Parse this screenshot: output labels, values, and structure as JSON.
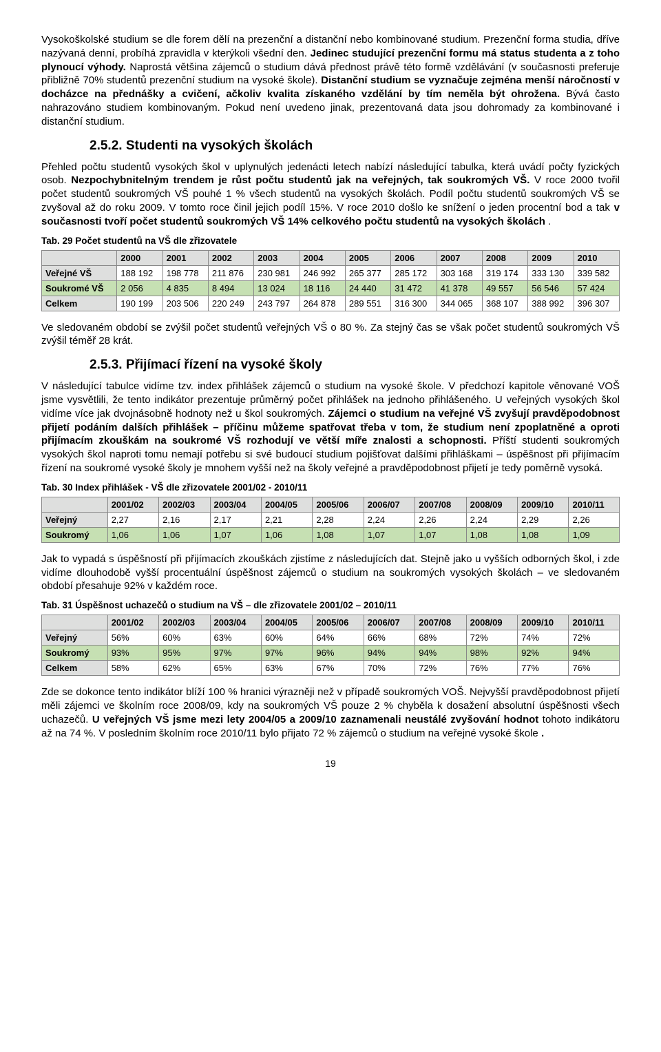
{
  "para1": {
    "t1": "Vysokoškolské studium se dle forem dělí na prezenční a distanční nebo kombinované studium. Prezenční forma  studia, dříve nazývaná denní, probíhá zpravidla v kterýkoli všední den. ",
    "b1": "Jedinec studující prezenční formu má status studenta a z toho plynoucí výhody.",
    "t2": " Naprostá většina zájemců o studium dává přednost právě této formě vzdělávání (v současnosti preferuje přibližně 70% studentů prezenční studium na vysoké škole). ",
    "b2": "Distanční studium se vyznačuje zejména menší náročností v docházce na přednášky a cvičení, ačkoliv kvalita získaného vzdělání by tím neměla být ohrožena.",
    "t3": " Bývá často nahrazováno studiem kombinovaným. Pokud není uvedeno jinak, prezentovaná data jsou dohromady za kombinované i distanční studium."
  },
  "section252": "2.5.2. Studenti na vysokých školách",
  "para2": {
    "t1": "Přehled počtu studentů vysokých škol v uplynulých jedenácti letech nabízí následující tabulka, která uvádí počty fyzických osob. ",
    "b1": "Nezpochybnitelným trendem je růst počtu studentů jak na veřejných, tak soukromých VŠ.",
    "t2": " V roce 2000 tvořil počet studentů soukromých VŠ pouhé 1 % všech studentů na vysokých školách. Podíl počtu studentů soukromých VŠ se zvyšoval až do roku 2009. V tomto roce činil jejich podíl 15%. V roce 2010 došlo ke snížení o jeden procentní bod a tak ",
    "b2": "v současnosti tvoří počet studentů soukromých VŠ 14% celkového počtu studentů na vysokých školách",
    "t3": "."
  },
  "tab29": {
    "caption": "Tab. 29 Počet studentů na VŠ dle zřizovatele",
    "cols": [
      "",
      "2000",
      "2001",
      "2002",
      "2003",
      "2004",
      "2005",
      "2006",
      "2007",
      "2008",
      "2009",
      "2010"
    ],
    "rows": [
      {
        "label": "Veřejné VŠ",
        "vals": [
          "188 192",
          "198 778",
          "211 876",
          "230 981",
          "246 992",
          "265 377",
          "285 172",
          "303 168",
          "319 174",
          "333 130",
          "339 582"
        ],
        "hl": false
      },
      {
        "label": "Soukromé VŠ",
        "vals": [
          "2 056",
          "4 835",
          "8 494",
          "13 024",
          "18 116",
          "24 440",
          "31 472",
          "41 378",
          "49 557",
          "56 546",
          "57 424"
        ],
        "hl": true
      },
      {
        "label": "Celkem",
        "vals": [
          "190 199",
          "203 506",
          "220 249",
          "243 797",
          "264 878",
          "289 551",
          "316 300",
          "344 065",
          "368 107",
          "388 992",
          "396 307"
        ],
        "hl": false
      }
    ]
  },
  "para3": "Ve sledovaném období se zvýšil počet studentů veřejných VŠ o 80 %. Za stejný čas se však počet studentů soukromých VŠ zvýšil téměř 28 krát.",
  "section253": "2.5.3. Přijímací řízení na vysoké školy",
  "para4": {
    "t1": "V následující tabulce vidíme tzv. index přihlášek zájemců o studium na vysoké škole. V předchozí kapitole věnované VOŠ jsme vysvětlili, že tento indikátor prezentuje průměrný počet přihlášek na jednoho přihlášeného. U veřejných vysokých škol vidíme více jak dvojnásobně hodnoty než u škol soukromých. ",
    "b1": "Zájemci o studium na veřejné VŠ zvyšují pravděpodobnost přijetí podáním dalších přihlášek – příčinu můžeme spatřovat třeba v tom, že studium není zpoplatněné a oproti přijímacím zkouškám na soukromé VŠ rozhodují ve větší míře znalosti a schopnosti.",
    "t2": " Příští studenti soukromých vysokých škol naproti tomu nemají potřebu si své budoucí studium pojišťovat dalšími přihláškami – úspěšnost při přijímacím řízení na soukromé vysoké školy je mnohem vyšší než na školy veřejné a pravděpodobnost přijetí je tedy poměrně vysoká."
  },
  "tab30": {
    "caption": "Tab. 30 Index přihlášek - VŠ dle zřizovatele 2001/02 - 2010/11",
    "cols": [
      "",
      "2001/02",
      "2002/03",
      "2003/04",
      "2004/05",
      "2005/06",
      "2006/07",
      "2007/08",
      "2008/09",
      "2009/10",
      "2010/11"
    ],
    "rows": [
      {
        "label": "Veřejný",
        "vals": [
          "2,27",
          "2,16",
          "2,17",
          "2,21",
          "2,28",
          "2,24",
          "2,26",
          "2,24",
          "2,29",
          "2,26"
        ],
        "hl": false
      },
      {
        "label": "Soukromý",
        "vals": [
          "1,06",
          "1,06",
          "1,07",
          "1,06",
          "1,08",
          "1,07",
          "1,07",
          "1,08",
          "1,08",
          "1,09"
        ],
        "hl": true
      }
    ]
  },
  "para5": "Jak to vypadá s úspěšností při přijímacích zkouškách zjistíme z následujících dat. Stejně jako u vyšších odborných škol, i zde vidíme dlouhodobě vyšší procentuální úspěšnost zájemců o studium na soukromých vysokých školách – ve sledovaném období přesahuje 92% v každém roce.",
  "tab31": {
    "caption": "Tab. 31 Úspěšnost uchazečů o studium na VŠ – dle zřizovatele 2001/02 – 2010/11",
    "cols": [
      "",
      "2001/02",
      "2002/03",
      "2003/04",
      "2004/05",
      "2005/06",
      "2006/07",
      "2007/08",
      "2008/09",
      "2009/10",
      "2010/11"
    ],
    "rows": [
      {
        "label": "Veřejný",
        "vals": [
          "56%",
          "60%",
          "63%",
          "60%",
          "64%",
          "66%",
          "68%",
          "72%",
          "74%",
          "72%"
        ],
        "hl": false
      },
      {
        "label": "Soukromý",
        "vals": [
          "93%",
          "95%",
          "97%",
          "97%",
          "96%",
          "94%",
          "94%",
          "98%",
          "92%",
          "94%"
        ],
        "hl": true
      },
      {
        "label": "Celkem",
        "vals": [
          "58%",
          "62%",
          "65%",
          "63%",
          "67%",
          "70%",
          "72%",
          "76%",
          "77%",
          "76%"
        ],
        "hl": false
      }
    ]
  },
  "para6": {
    "t1": "Zde se dokonce tento indikátor blíží 100 % hranici výrazněji než v případě soukromých VOŠ. Nejvyšší pravděpodobnost přijetí měli zájemci ve školním roce 2008/09, kdy na soukromých VŠ pouze 2 % chyběla k dosažení absolutní úspěšnosti všech uchazečů. ",
    "b1": "U veřejných VŠ jsme mezi lety 2004/05 a 2009/10 zaznamenali neustálé zvyšování hodnot",
    "t2": " tohoto indikátoru až na 74 %. V posledním školním roce 2010/11 bylo přijato 72 % zájemců o studium na veřejné vysoké škole",
    "b2": "."
  },
  "pagenum": "19"
}
